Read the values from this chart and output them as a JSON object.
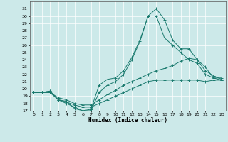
{
  "title": "",
  "xlabel": "Humidex (Indice chaleur)",
  "bg_color": "#cce9e9",
  "line_color": "#1a7a6e",
  "grid_color": "#ffffff",
  "xlim": [
    -0.5,
    23.5
  ],
  "ylim": [
    17,
    32
  ],
  "yticks": [
    17,
    18,
    19,
    20,
    21,
    22,
    23,
    24,
    25,
    26,
    27,
    28,
    29,
    30,
    31
  ],
  "xticks": [
    0,
    1,
    2,
    3,
    4,
    5,
    6,
    7,
    8,
    9,
    10,
    11,
    12,
    13,
    14,
    15,
    16,
    17,
    18,
    19,
    20,
    21,
    22,
    23
  ],
  "line1_x": [
    0,
    1,
    2,
    3,
    4,
    5,
    6,
    7,
    8,
    9,
    10,
    11,
    12,
    13,
    14,
    15,
    16,
    17,
    18,
    19,
    20,
    21,
    22,
    23
  ],
  "line1_y": [
    19.5,
    19.5,
    19.7,
    18.5,
    18.3,
    17.3,
    17.0,
    17.2,
    20.5,
    21.3,
    21.5,
    22.5,
    24.3,
    26.7,
    30.0,
    31.0,
    29.5,
    26.7,
    25.5,
    25.5,
    24.0,
    23.0,
    21.5,
    21.5
  ],
  "line2_x": [
    0,
    1,
    2,
    3,
    4,
    5,
    6,
    7,
    8,
    9,
    10,
    11,
    12,
    13,
    14,
    15,
    16,
    17,
    18,
    19,
    20,
    21,
    22,
    23
  ],
  "line2_y": [
    19.5,
    19.5,
    19.7,
    18.5,
    18.0,
    17.5,
    17.0,
    17.0,
    19.5,
    20.5,
    21.0,
    22.0,
    24.0,
    26.5,
    30.0,
    30.0,
    27.0,
    26.0,
    25.0,
    24.0,
    23.5,
    22.0,
    21.5,
    21.2
  ],
  "line3_x": [
    0,
    1,
    2,
    3,
    4,
    5,
    6,
    7,
    8,
    9,
    10,
    11,
    12,
    13,
    14,
    15,
    16,
    17,
    18,
    19,
    20,
    21,
    22,
    23
  ],
  "line3_y": [
    19.5,
    19.5,
    19.5,
    18.8,
    18.5,
    18.0,
    17.8,
    17.8,
    18.5,
    19.2,
    19.8,
    20.5,
    21.0,
    21.5,
    22.0,
    22.5,
    22.8,
    23.2,
    23.8,
    24.2,
    24.0,
    22.5,
    21.8,
    21.3
  ],
  "line4_x": [
    0,
    1,
    2,
    3,
    4,
    5,
    6,
    7,
    8,
    9,
    10,
    11,
    12,
    13,
    14,
    15,
    16,
    17,
    18,
    19,
    20,
    21,
    22,
    23
  ],
  "line4_y": [
    19.5,
    19.5,
    19.5,
    18.5,
    18.2,
    17.8,
    17.5,
    17.5,
    18.0,
    18.5,
    19.0,
    19.5,
    20.0,
    20.5,
    21.0,
    21.2,
    21.2,
    21.2,
    21.2,
    21.2,
    21.2,
    21.0,
    21.2,
    21.2
  ]
}
